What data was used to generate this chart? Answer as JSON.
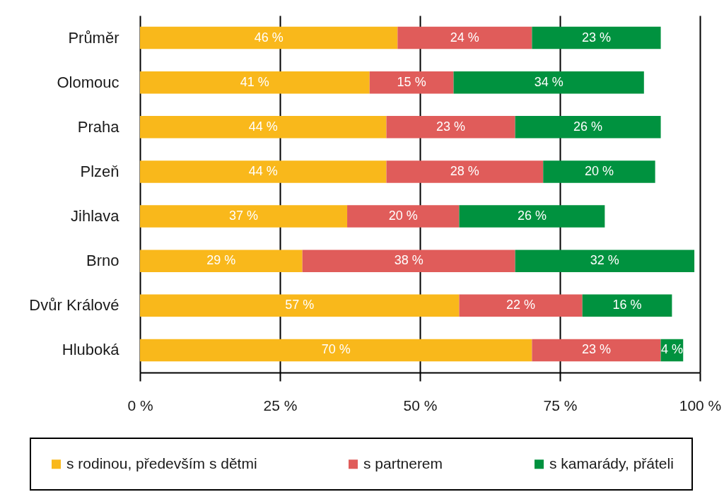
{
  "chart_data": {
    "type": "bar",
    "orientation": "horizontal",
    "stacked": true,
    "categories": [
      "Průměr",
      "Olomouc",
      "Praha",
      "Plzeň",
      "Jihlava",
      "Brno",
      "Dvůr Králové",
      "Hluboká"
    ],
    "series": [
      {
        "name": "s rodinou, především s dětmi",
        "color": "#f9b81b",
        "values": [
          46,
          41,
          44,
          44,
          37,
          29,
          57,
          70
        ],
        "value_labels": [
          "46 %",
          "41 %",
          "44 %",
          "44 %",
          "37 %",
          "29 %",
          "57 %",
          "70 %"
        ]
      },
      {
        "name": "s partnerem",
        "color": "#e05c5a",
        "values": [
          24,
          15,
          23,
          28,
          20,
          38,
          22,
          23
        ],
        "value_labels": [
          "24 %",
          "15 %",
          "23 %",
          "28 %",
          "20 %",
          "38 %",
          "22 %",
          "23 %"
        ]
      },
      {
        "name": "s kamarády, přáteli",
        "color": "#00923f",
        "values": [
          23,
          34,
          26,
          20,
          26,
          32,
          16,
          4
        ],
        "value_labels": [
          "23 %",
          "34 %",
          "26 %",
          "20 %",
          "26 %",
          "32 %",
          "16 %",
          "4 %"
        ]
      }
    ],
    "xlim": [
      0,
      100
    ],
    "xticks": [
      {
        "value": 0,
        "label": "0 %"
      },
      {
        "value": 25,
        "label": "25 %"
      },
      {
        "value": 50,
        "label": "50 %"
      },
      {
        "value": 75,
        "label": "75 %"
      },
      {
        "value": 100,
        "label": "100 %"
      }
    ],
    "grid": "x",
    "legend": "bottom"
  }
}
